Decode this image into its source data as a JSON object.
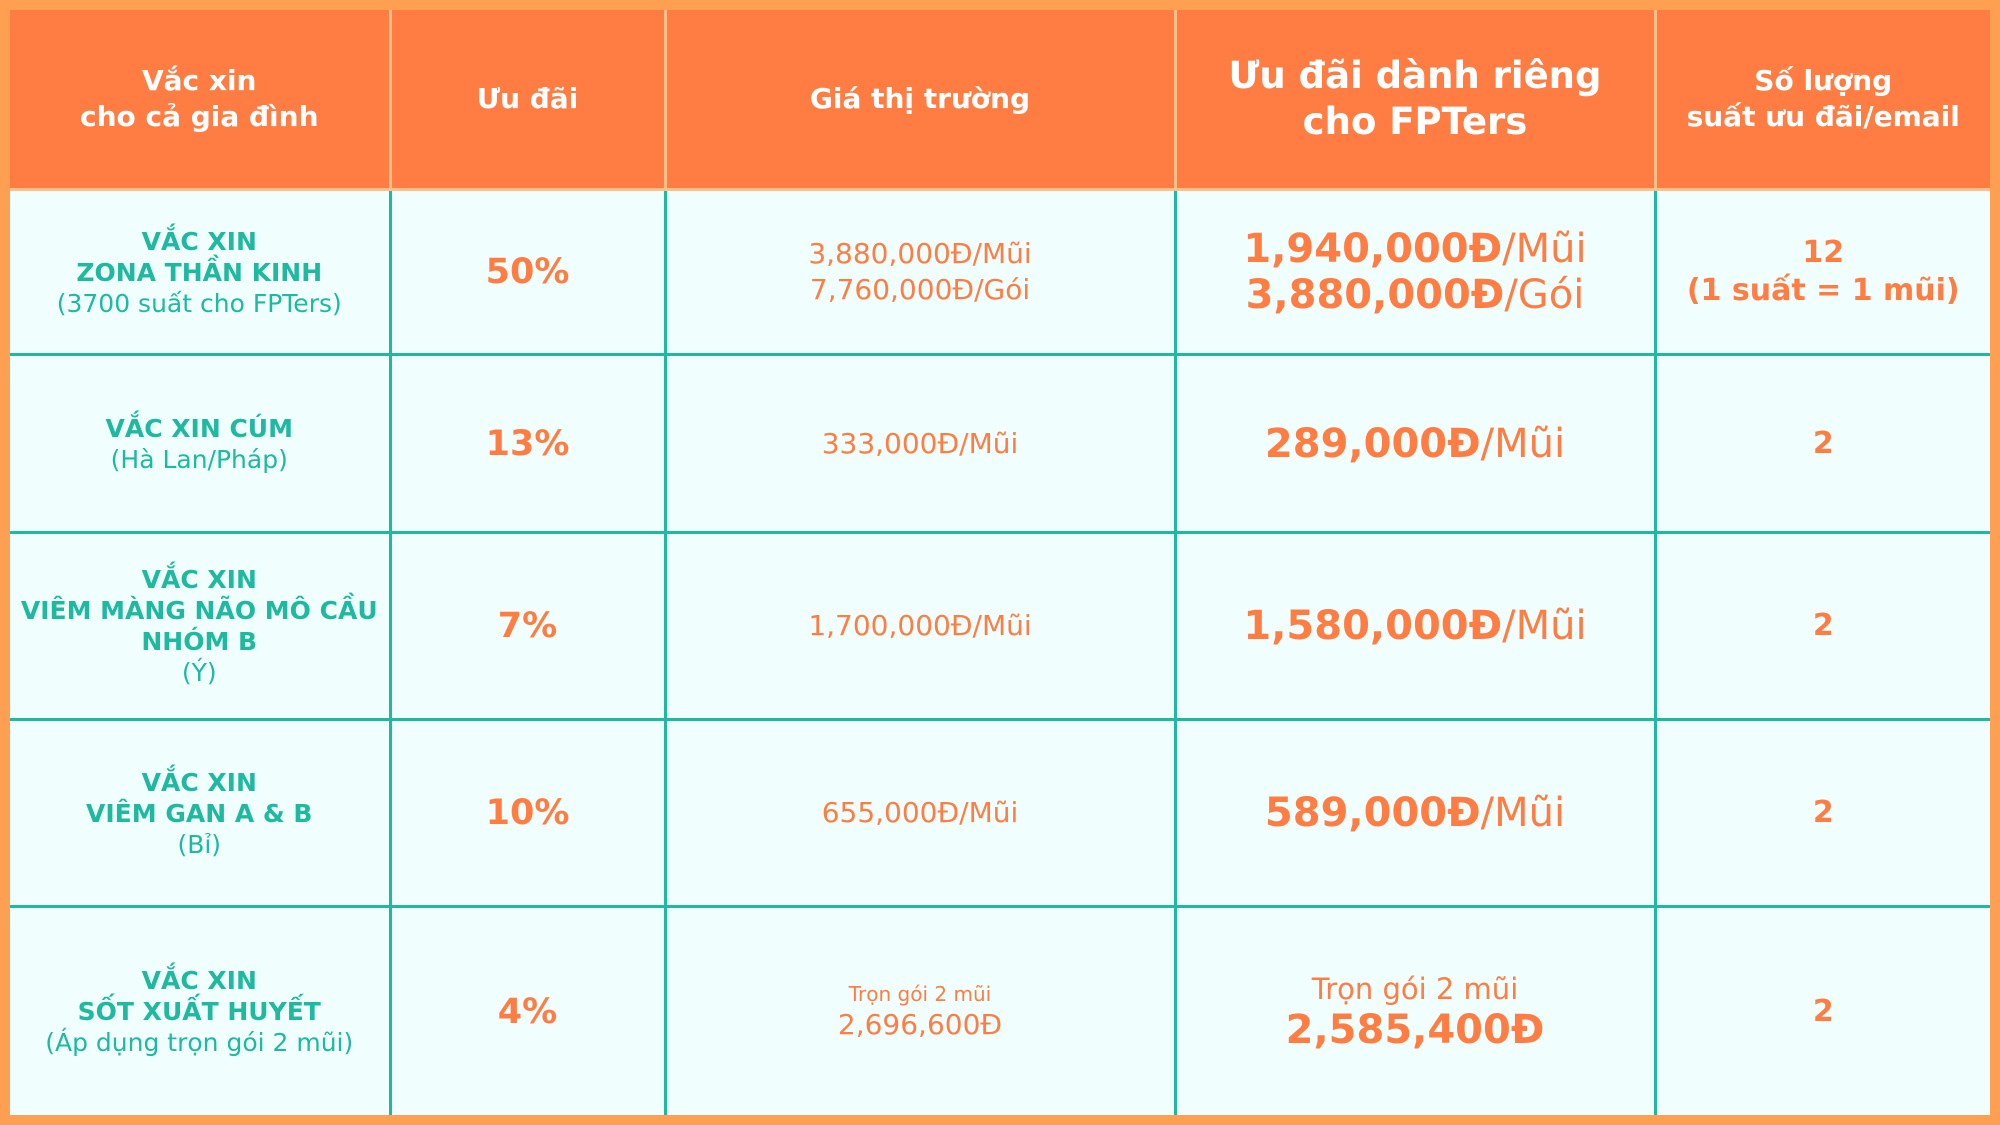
{
  "header": {
    "col1": [
      "Vắc xin",
      "cho cả gia đình"
    ],
    "col2": "Ưu đãi",
    "col3": "Giá thị trường",
    "col4": [
      "Ưu đãi dành riêng",
      "cho FPTers"
    ],
    "col5": [
      "Số lượng",
      "suất ưu đãi/email"
    ]
  },
  "rows": [
    {
      "name_lines": [
        "VẮC XIN",
        "ZONA THẦN KINH"
      ],
      "note": "(3700 suất cho FPTers)",
      "discount": "50%",
      "market": [
        "3,880,000Đ/Mũi",
        "7,760,000Đ/Gói"
      ],
      "fpt": [
        {
          "price": "1,940,000Đ",
          "unit": "/Mũi"
        },
        {
          "price": "3,880,000Đ",
          "unit": "/Gói"
        }
      ],
      "qty": [
        "12",
        "(1 suất = 1 mũi)"
      ]
    },
    {
      "name_lines": [
        "VẮC XIN CÚM"
      ],
      "note": "(Hà Lan/Pháp)",
      "discount": "13%",
      "market": [
        "333,000Đ/Mũi"
      ],
      "fpt": [
        {
          "price": "289,000Đ",
          "unit": "/Mũi"
        }
      ],
      "qty": [
        "2"
      ]
    },
    {
      "name_lines": [
        "VẮC XIN",
        "VIÊM MÀNG NÃO MÔ CẦU",
        "NHÓM B"
      ],
      "note": "(Ý)",
      "discount": "7%",
      "market": [
        "1,700,000Đ/Mũi"
      ],
      "fpt": [
        {
          "price": "1,580,000Đ",
          "unit": "/Mũi"
        }
      ],
      "qty": [
        "2"
      ]
    },
    {
      "name_lines": [
        "VẮC XIN",
        "VIÊM GAN A & B"
      ],
      "note": "(Bỉ)",
      "discount": "10%",
      "market": [
        "655,000Đ/Mũi"
      ],
      "fpt": [
        {
          "price": "589,000Đ",
          "unit": "/Mũi"
        }
      ],
      "qty": [
        "2"
      ]
    },
    {
      "name_lines": [
        "VẮC XIN",
        "SỐT XUẤT HUYẾT"
      ],
      "note": "(Áp dụng trọn gói 2 mũi)",
      "discount": "4%",
      "market_note": "Trọn gói 2 mũi",
      "market": [
        "2,696,600Đ"
      ],
      "fpt_note": "Trọn gói 2 mũi",
      "fpt": [
        {
          "price": "2,585,400Đ",
          "unit": ""
        }
      ],
      "qty": [
        "2"
      ]
    }
  ],
  "colors": {
    "frame": "#FF9F52",
    "header_bg": "#FF7D43",
    "teal": "#1FB9A0",
    "orange_text": "#FF7D43",
    "body_bg": "#F0FEFD"
  }
}
